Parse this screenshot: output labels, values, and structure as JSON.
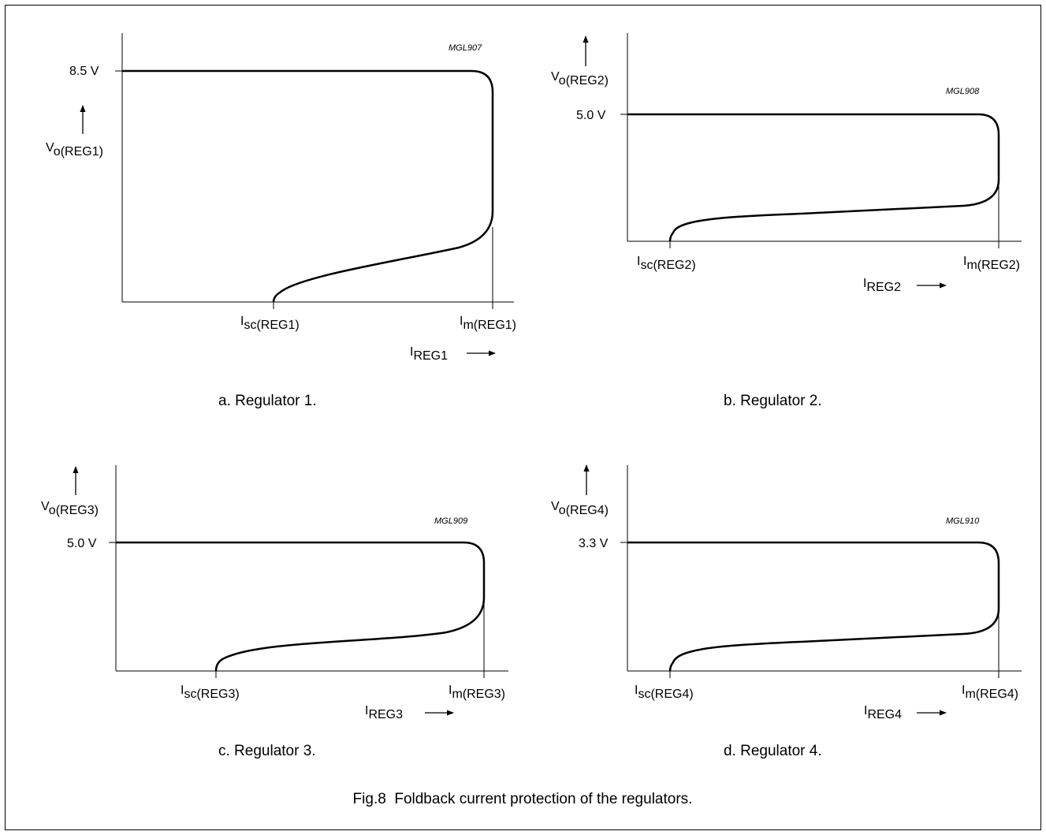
{
  "figure_caption": "Fig.8  Foldback current protection of the regulators.",
  "panels": [
    {
      "caption": "a.  Regulator 1.",
      "code": "MGL907",
      "voltage": "8.5 V",
      "v_main": "V",
      "v_sub": "o(REG1)",
      "i_axis_main": "I",
      "i_axis_sub": "REG1",
      "isc_main": "I",
      "isc_sub": "sc(REG1)",
      "im_main": "I",
      "im_sub": "m(REG1)"
    },
    {
      "caption": "b.  Regulator 2.",
      "code": "MGL908",
      "voltage": "5.0 V",
      "v_main": "V",
      "v_sub": "o(REG2)",
      "i_axis_main": "I",
      "i_axis_sub": "REG2",
      "isc_main": "I",
      "isc_sub": "sc(REG2)",
      "im_main": "I",
      "im_sub": "m(REG2)"
    },
    {
      "caption": "c.  Regulator 3.",
      "code": "MGL909",
      "voltage": "5.0 V",
      "v_main": "V",
      "v_sub": "o(REG3)",
      "i_axis_main": "I",
      "i_axis_sub": "REG3",
      "isc_main": "I",
      "isc_sub": "sc(REG3)",
      "im_main": "I",
      "im_sub": "m(REG3)"
    },
    {
      "caption": "d.  Regulator 4.",
      "code": "MGL910",
      "voltage": "3.3 V",
      "v_main": "V",
      "v_sub": "o(REG4)",
      "i_axis_main": "I",
      "i_axis_sub": "REG4",
      "isc_main": "I",
      "isc_sub": "sc(REG4)",
      "im_main": "I",
      "im_sub": "m(REG4)"
    }
  ]
}
